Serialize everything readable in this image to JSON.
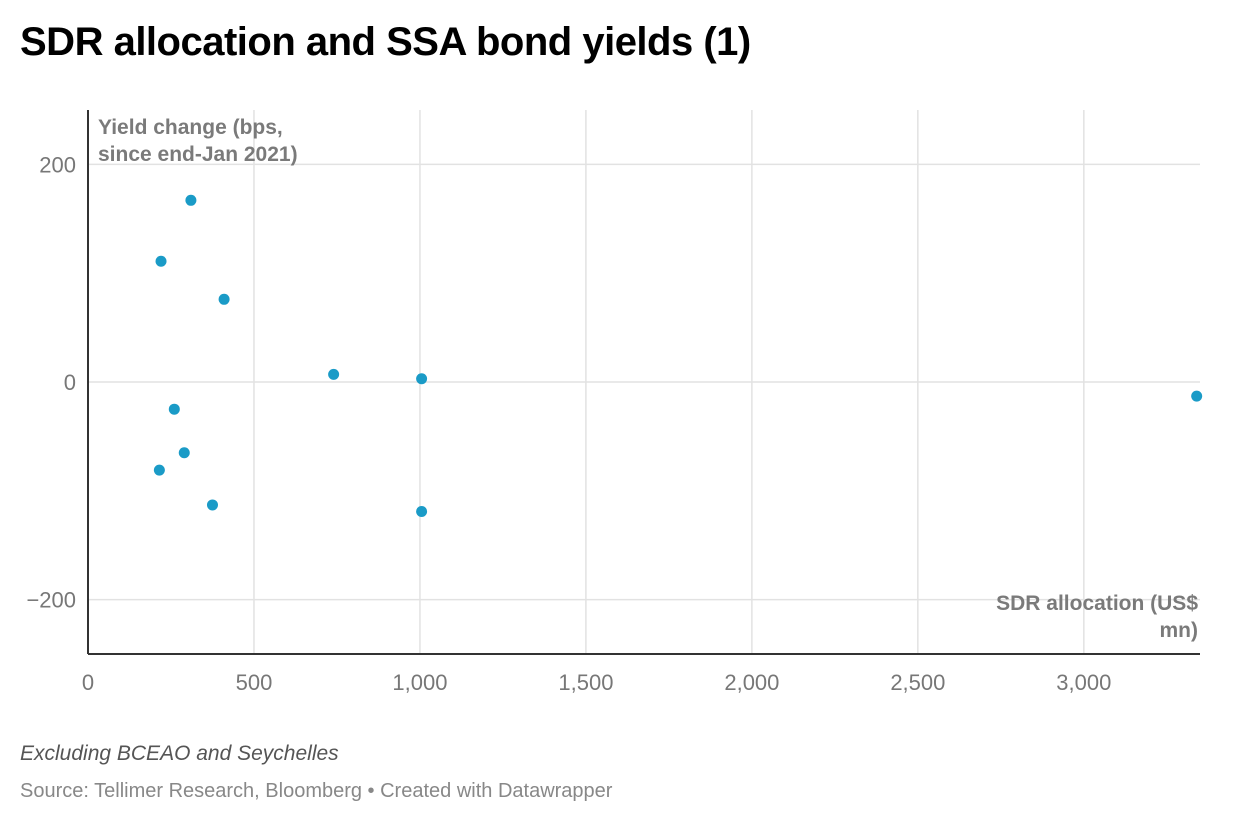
{
  "title": "SDR allocation and SSA bond yields (1)",
  "footnote": "Excluding BCEAO and Seychelles",
  "source": "Source: Tellimer Research, Bloomberg • Created with Datawrapper",
  "colors": {
    "point": "#1a9bc7",
    "grid": "#e2e2e2",
    "axis": "#333333"
  },
  "chart_data": {
    "type": "scatter",
    "title": "SDR allocation and SSA bond yields (1)",
    "xlabel": "SDR allocation (US$ mn)",
    "ylabel": "Yield change (bps, since end-Jan 2021)",
    "ylabel_lines": [
      "Yield change (bps,",
      "since end-Jan 2021)"
    ],
    "xlabel_lines": [
      "SDR allocation (US$",
      "mn)"
    ],
    "xlim": [
      0,
      3350
    ],
    "ylim": [
      -250,
      250
    ],
    "xticks": [
      0,
      500,
      1000,
      1500,
      2000,
      2500,
      3000
    ],
    "xtick_labels": [
      "0",
      "500",
      "1,000",
      "1,500",
      "2,000",
      "2,500",
      "3,000"
    ],
    "yticks": [
      200,
      0,
      -200
    ],
    "ytick_labels": [
      "200",
      "0",
      "−200"
    ],
    "grid": true,
    "series": [
      {
        "points": [
          {
            "x": 310,
            "y": 167
          },
          {
            "x": 220,
            "y": 111
          },
          {
            "x": 410,
            "y": 76
          },
          {
            "x": 740,
            "y": 7
          },
          {
            "x": 1005,
            "y": 3
          },
          {
            "x": 3340,
            "y": -13
          },
          {
            "x": 260,
            "y": -25
          },
          {
            "x": 290,
            "y": -65
          },
          {
            "x": 215,
            "y": -81
          },
          {
            "x": 375,
            "y": -113
          },
          {
            "x": 1005,
            "y": -119
          }
        ]
      }
    ]
  }
}
